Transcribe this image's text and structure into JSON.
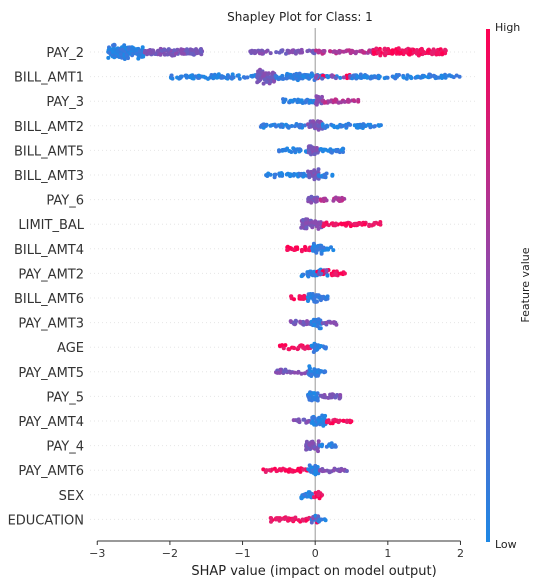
{
  "chart_data": {
    "type": "scatter",
    "subtype": "shap-beeswarm",
    "title": "Shapley Plot for Class: 1",
    "xlabel": "SHAP value (impact on model output)",
    "xlim": [
      -3.1,
      2.2
    ],
    "xticks": [
      -3,
      -2,
      -1,
      0,
      1,
      2
    ],
    "colorbar": {
      "label": "Feature value",
      "high_label": "High",
      "low_label": "Low",
      "high_color": "#ff0052",
      "low_color": "#1e88e5"
    },
    "features": [
      {
        "name": "PAY_2",
        "min": -2.85,
        "max": 1.8,
        "segments": [
          [
            -2.85,
            -2.35,
            "low",
            4
          ],
          [
            -2.35,
            -1.55,
            "mid",
            2
          ],
          [
            -0.9,
            0.0,
            "mid",
            1
          ],
          [
            0.0,
            0.8,
            "midhigh",
            1
          ],
          [
            0.8,
            1.8,
            "high",
            2
          ]
        ]
      },
      {
        "name": "BILL_AMT1",
        "min": -2.0,
        "max": 2.0,
        "segments": [
          [
            -2.0,
            -0.8,
            "low",
            1
          ],
          [
            -0.8,
            -0.55,
            "mid",
            4
          ],
          [
            -0.55,
            0.0,
            "low",
            2
          ],
          [
            0.0,
            0.5,
            "mix",
            1
          ],
          [
            0.5,
            2.0,
            "low",
            1
          ]
        ]
      },
      {
        "name": "PAY_3",
        "min": -0.45,
        "max": 0.6,
        "segments": [
          [
            -0.45,
            0.0,
            "low",
            1
          ],
          [
            0.0,
            0.1,
            "mid",
            3
          ],
          [
            0.1,
            0.6,
            "midhigh",
            1
          ]
        ]
      },
      {
        "name": "BILL_AMT2",
        "min": -0.75,
        "max": 0.95,
        "segments": [
          [
            -0.75,
            -0.1,
            "low",
            1
          ],
          [
            -0.1,
            0.1,
            "mid",
            3
          ],
          [
            0.1,
            0.95,
            "low",
            1
          ]
        ]
      },
      {
        "name": "BILL_AMT5",
        "min": -0.5,
        "max": 0.4,
        "segments": [
          [
            -0.5,
            -0.1,
            "low",
            1
          ],
          [
            -0.1,
            0.05,
            "mid",
            3
          ],
          [
            0.05,
            0.4,
            "low",
            1
          ]
        ]
      },
      {
        "name": "BILL_AMT3",
        "min": -0.7,
        "max": 0.25,
        "segments": [
          [
            -0.7,
            -0.1,
            "low",
            1
          ],
          [
            -0.1,
            0.05,
            "mid",
            3
          ],
          [
            0.05,
            0.25,
            "low",
            1
          ]
        ]
      },
      {
        "name": "PAY_6",
        "min": -0.1,
        "max": 0.4,
        "segments": [
          [
            -0.1,
            0.05,
            "mid",
            2
          ],
          [
            0.05,
            0.4,
            "midhigh",
            1
          ]
        ]
      },
      {
        "name": "LIMIT_BAL",
        "min": -0.2,
        "max": 0.9,
        "segments": [
          [
            -0.2,
            0.1,
            "mid",
            3
          ],
          [
            0.1,
            0.6,
            "high",
            1
          ],
          [
            0.6,
            0.9,
            "high",
            1
          ]
        ]
      },
      {
        "name": "BILL_AMT4",
        "min": -0.4,
        "max": 0.25,
        "segments": [
          [
            -0.4,
            -0.05,
            "high",
            1
          ],
          [
            -0.05,
            0.1,
            "low",
            3
          ],
          [
            0.1,
            0.25,
            "low",
            1
          ]
        ]
      },
      {
        "name": "PAY_AMT2",
        "min": -0.2,
        "max": 0.45,
        "segments": [
          [
            -0.2,
            0.0,
            "low",
            2
          ],
          [
            0.0,
            0.2,
            "mix",
            2
          ],
          [
            0.2,
            0.45,
            "high",
            1
          ]
        ]
      },
      {
        "name": "BILL_AMT6",
        "min": -0.4,
        "max": 0.2,
        "segments": [
          [
            -0.4,
            -0.1,
            "high",
            1
          ],
          [
            -0.1,
            0.05,
            "low",
            3
          ],
          [
            0.05,
            0.2,
            "low",
            1
          ]
        ]
      },
      {
        "name": "PAY_AMT3",
        "min": -0.35,
        "max": 0.3,
        "segments": [
          [
            -0.35,
            -0.05,
            "mid",
            1
          ],
          [
            -0.05,
            0.1,
            "low",
            3
          ],
          [
            0.1,
            0.3,
            "mid",
            1
          ]
        ]
      },
      {
        "name": "AGE",
        "min": -0.5,
        "max": 0.2,
        "segments": [
          [
            -0.5,
            -0.05,
            "high",
            1
          ],
          [
            -0.05,
            0.05,
            "low",
            3
          ],
          [
            0.05,
            0.2,
            "low",
            1
          ]
        ]
      },
      {
        "name": "PAY_AMT5",
        "min": -0.55,
        "max": 0.15,
        "segments": [
          [
            -0.55,
            -0.1,
            "mid",
            1
          ],
          [
            -0.1,
            0.05,
            "low",
            3
          ],
          [
            0.05,
            0.15,
            "low",
            1
          ]
        ]
      },
      {
        "name": "PAY_5",
        "min": -0.1,
        "max": 0.35,
        "segments": [
          [
            -0.1,
            0.05,
            "low",
            3
          ],
          [
            0.05,
            0.35,
            "mid",
            1
          ]
        ]
      },
      {
        "name": "PAY_AMT4",
        "min": -0.3,
        "max": 0.5,
        "segments": [
          [
            -0.3,
            -0.05,
            "mid",
            1
          ],
          [
            -0.05,
            0.15,
            "low",
            3
          ],
          [
            0.15,
            0.5,
            "high",
            1
          ]
        ]
      },
      {
        "name": "PAY_4",
        "min": -0.15,
        "max": 0.3,
        "segments": [
          [
            -0.15,
            0.05,
            "mid",
            3
          ],
          [
            0.05,
            0.3,
            "low",
            1
          ]
        ]
      },
      {
        "name": "PAY_AMT6",
        "min": -0.75,
        "max": 0.45,
        "segments": [
          [
            -0.75,
            -0.1,
            "high",
            1
          ],
          [
            -0.1,
            0.05,
            "low",
            3
          ],
          [
            0.05,
            0.45,
            "mid",
            1
          ]
        ]
      },
      {
        "name": "SEX",
        "min": -0.2,
        "max": 0.1,
        "segments": [
          [
            -0.2,
            -0.02,
            "low",
            2
          ],
          [
            -0.02,
            0.1,
            "high",
            2
          ]
        ]
      },
      {
        "name": "EDUCATION",
        "min": -0.65,
        "max": 0.15,
        "segments": [
          [
            -0.65,
            -0.05,
            "high",
            1
          ],
          [
            -0.05,
            0.05,
            "mix",
            3
          ],
          [
            0.05,
            0.15,
            "low",
            1
          ]
        ]
      }
    ]
  }
}
